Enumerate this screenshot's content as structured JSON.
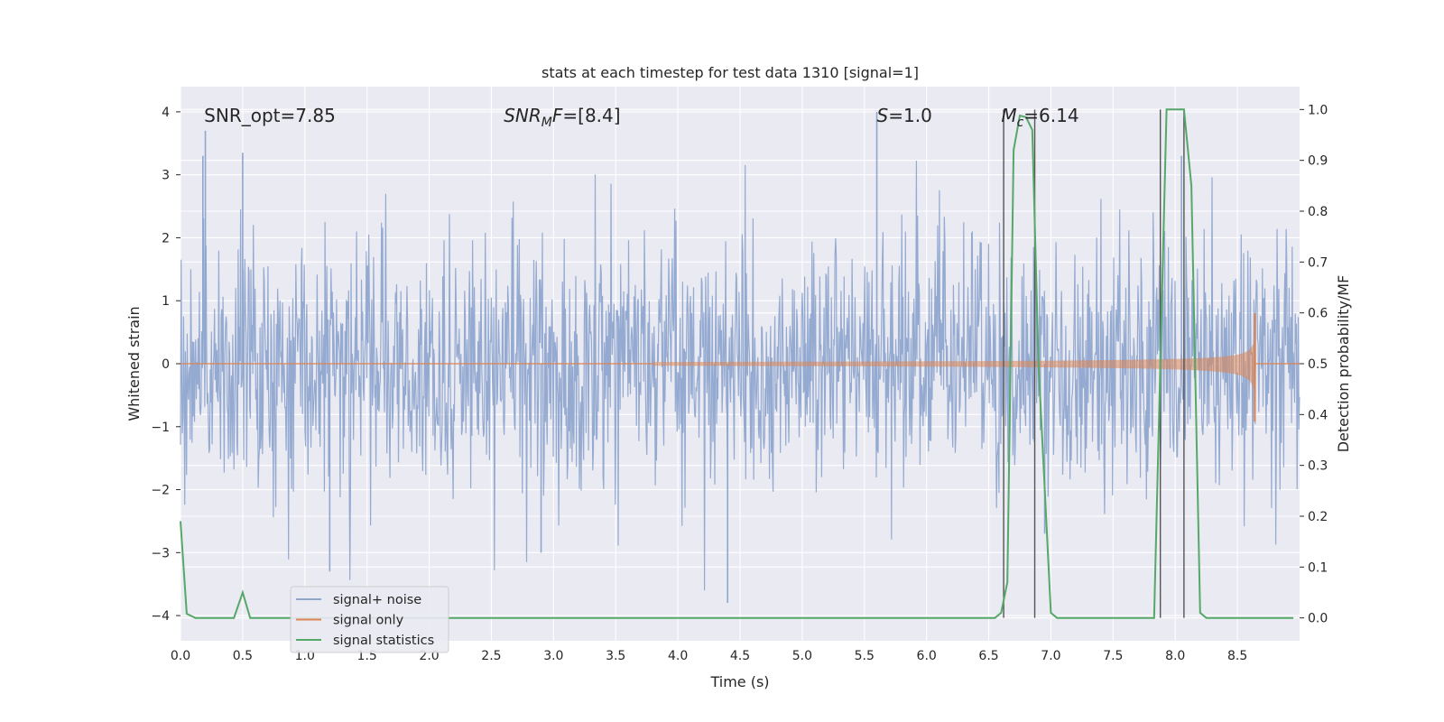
{
  "chart_data": {
    "type": "line",
    "title": "stats at each timestep for test data 1310 [signal=1]",
    "xlabel": "Time (s)",
    "ylabel_left": "Whitened strain",
    "ylabel_right": "Detection probability/MF",
    "xlim": [
      0,
      9.0
    ],
    "ylim_left": [
      -4.4,
      4.4
    ],
    "ylim_right": [
      -0.045,
      1.045
    ],
    "x_ticks": [
      "0.0",
      "0.5",
      "1.0",
      "1.5",
      "2.0",
      "2.5",
      "3.0",
      "3.5",
      "4.0",
      "4.5",
      "5.0",
      "5.5",
      "6.0",
      "6.5",
      "7.0",
      "7.5",
      "8.0",
      "8.5"
    ],
    "x_tick_values": [
      0,
      0.5,
      1,
      1.5,
      2,
      2.5,
      3,
      3.5,
      4,
      4.5,
      5,
      5.5,
      6,
      6.5,
      7,
      7.5,
      8,
      8.5
    ],
    "y_ticks_left": [
      "4",
      "3",
      "2",
      "1",
      "0",
      "−1",
      "−2",
      "−3",
      "−4"
    ],
    "y_tick_values_left": [
      4,
      3,
      2,
      1,
      0,
      -1,
      -2,
      -3,
      -4
    ],
    "y_ticks_right": [
      "1.0",
      "0.9",
      "0.8",
      "0.7",
      "0.6",
      "0.5",
      "0.4",
      "0.3",
      "0.2",
      "0.1",
      "0.0"
    ],
    "y_tick_values_right": [
      1.0,
      0.9,
      0.8,
      0.7,
      0.6,
      0.5,
      0.4,
      0.3,
      0.2,
      0.1,
      0.0
    ],
    "grid": true,
    "legend_position": "lower-left",
    "annotations": [
      {
        "id": "snr-opt",
        "text": "SNR_opt=7.85",
        "x": 0.19,
        "y_right": 0.988
      },
      {
        "id": "snr-mf",
        "main": "SNR",
        "sub": "M",
        "rest": "F=[8.4]",
        "x": 2.6,
        "y_right": 0.988
      },
      {
        "id": "s-stat",
        "main": "S",
        "rest": "=1.0",
        "x": 5.6,
        "y_right": 0.988
      },
      {
        "id": "chirp-mass",
        "main": "M",
        "sub": "c",
        "rest": "=6.14",
        "x": 6.6,
        "y_right": 0.988
      }
    ],
    "vertical_lines": [
      6.62,
      6.87,
      7.88,
      8.07
    ],
    "series": [
      {
        "name": "signal+ noise",
        "color": "#8fa6cf",
        "description_kind": "noise",
        "sample_rate": 204.8,
        "sigma": 0.95,
        "spikes": [
          [
            0.2,
            3.7
          ],
          [
            0.18,
            3.3
          ],
          [
            0.5,
            3.35
          ],
          [
            5.6,
            4.0
          ],
          [
            4.4,
            -3.8
          ],
          [
            1.2,
            -3.3
          ],
          [
            2.9,
            -3.0
          ],
          [
            6.95,
            -2.7
          ],
          [
            8.05,
            3.3
          ]
        ]
      },
      {
        "name": "signal only",
        "color": "#dd8452",
        "description_kind": "chirp",
        "t_coalescence": 8.65,
        "t_start": 3.8,
        "peak_amplitude": 0.75
      },
      {
        "name": "signal statistics",
        "color": "#55a868",
        "axis": "right",
        "x": [
          0.0,
          0.05,
          0.12,
          0.2,
          0.43,
          0.5,
          0.56,
          6.55,
          6.6,
          6.65,
          6.7,
          6.75,
          6.8,
          6.85,
          6.9,
          7.0,
          7.05,
          7.83,
          7.88,
          7.93,
          8.0,
          8.07,
          8.13,
          8.2,
          8.25,
          8.95
        ],
        "y": [
          0.19,
          0.008,
          0.0,
          0.0,
          0.0,
          0.05,
          0.0,
          0.0,
          0.01,
          0.07,
          0.92,
          0.988,
          0.985,
          0.96,
          0.5,
          0.01,
          0.0,
          0.0,
          0.5,
          1.0,
          1.0,
          1.0,
          0.85,
          0.01,
          0.0,
          0.0
        ]
      }
    ]
  }
}
